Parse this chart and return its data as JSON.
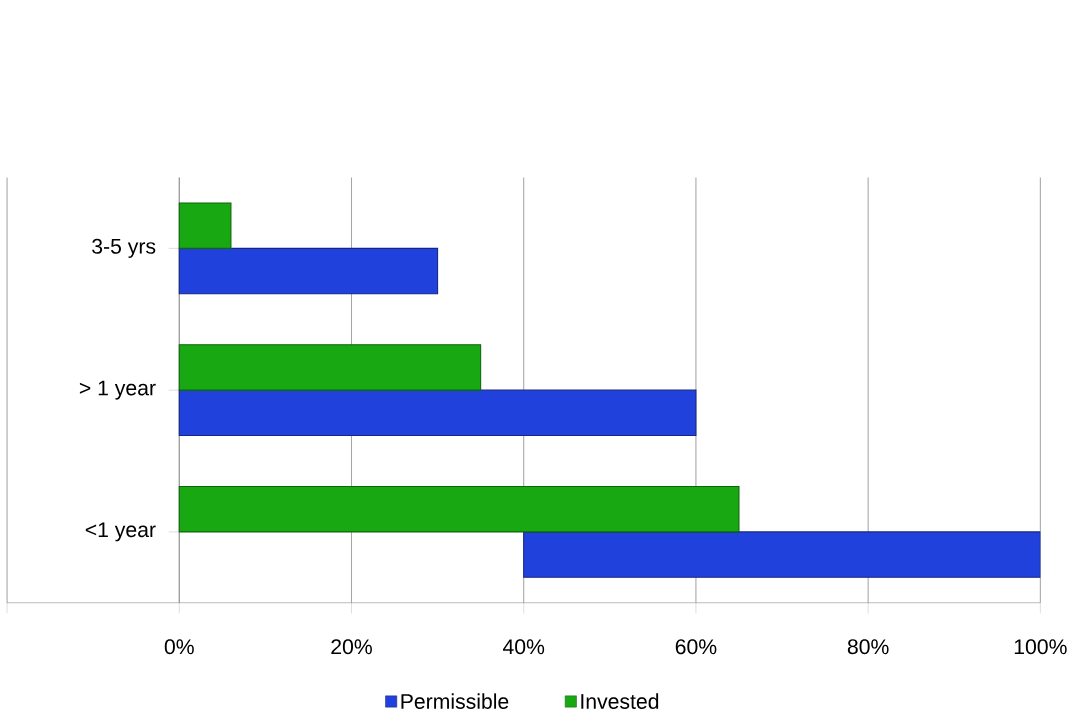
{
  "chart_data": {
    "type": "bar",
    "orientation": "horizontal",
    "categories": [
      "3-5 yrs",
      "> 1 year",
      "<1 year"
    ],
    "series": [
      {
        "name": "Permissible",
        "color": "#2141dc",
        "values": [
          30,
          60,
          60
        ],
        "base": [
          0,
          0,
          40
        ]
      },
      {
        "name": "Invested",
        "color": "#18a812",
        "values": [
          6,
          35,
          65
        ]
      }
    ],
    "xlim": [
      -20,
      100
    ],
    "xticks": [
      {
        "value": -20,
        "label": null
      },
      {
        "value": 0,
        "label": "0%"
      },
      {
        "value": 20,
        "label": "20%"
      },
      {
        "value": 40,
        "label": "40%"
      },
      {
        "value": 60,
        "label": "60%"
      },
      {
        "value": 80,
        "label": "80%"
      },
      {
        "value": 100,
        "label": "100%"
      }
    ],
    "grid": "x",
    "legend": "bottom"
  }
}
